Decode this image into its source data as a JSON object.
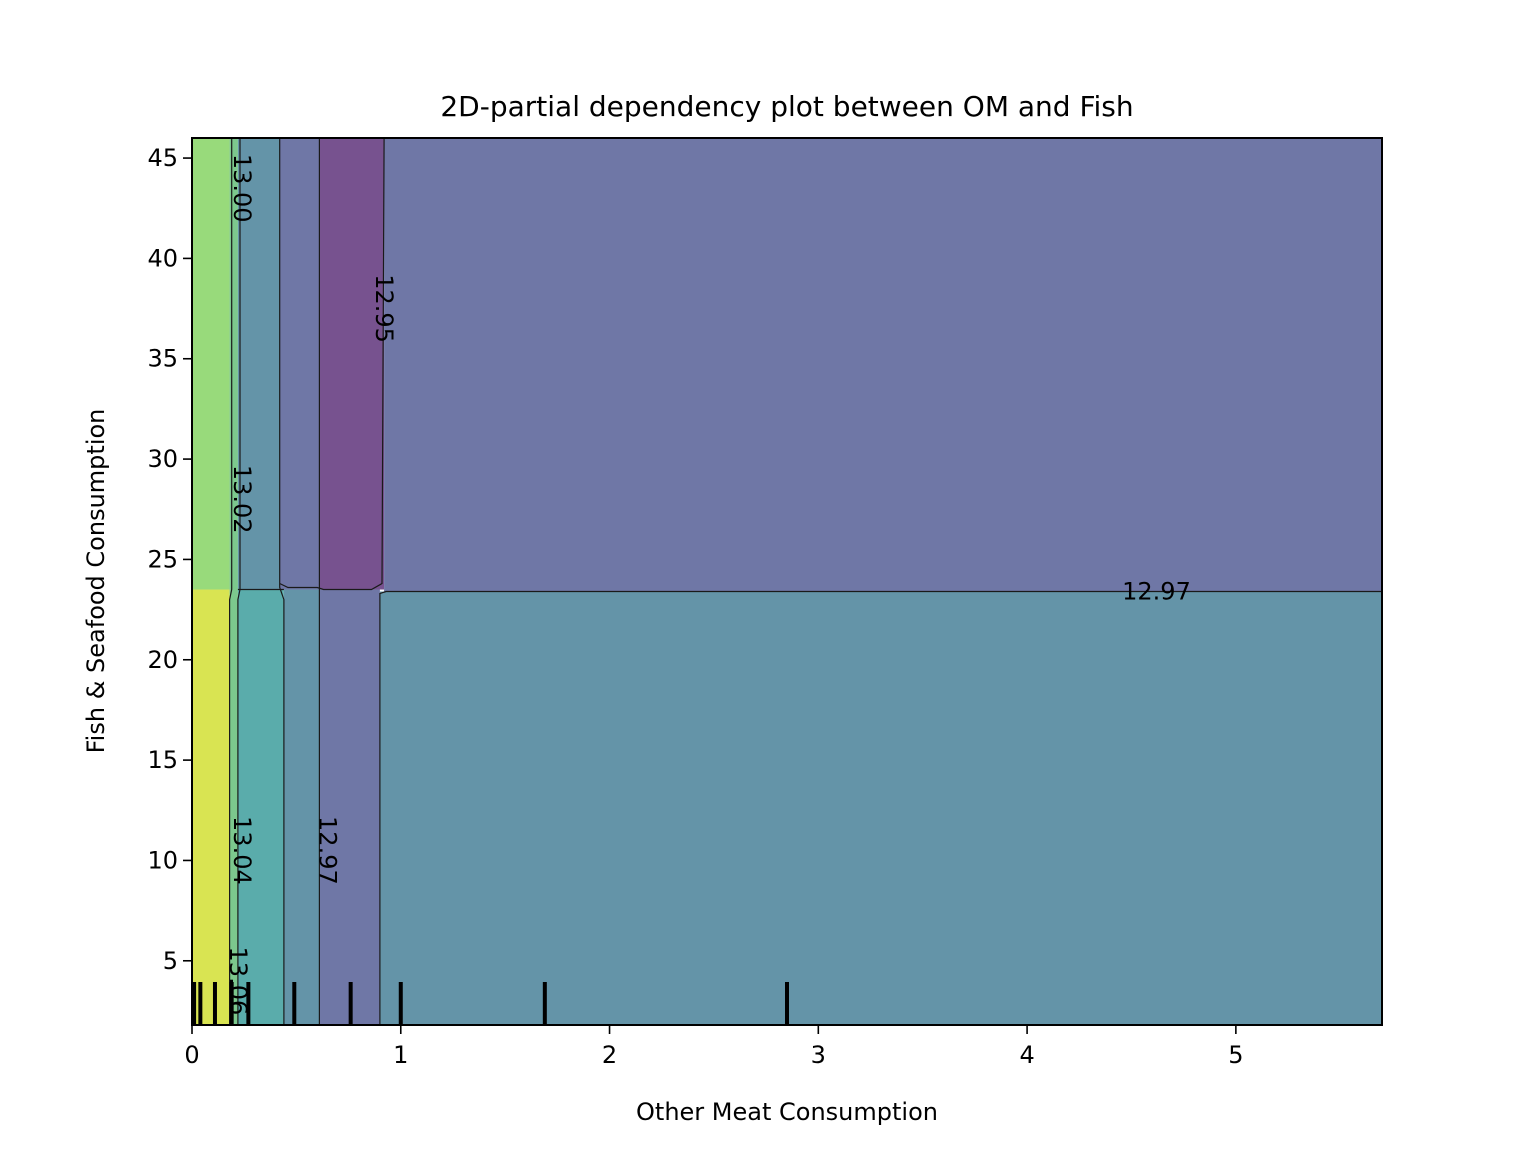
{
  "chart_data": {
    "type": "heatmap",
    "subtype": "filled-contour",
    "title": "2D-partial dependency plot between OM and Fish",
    "xlabel": "Other Meat Consumption",
    "ylabel": "Fish & Seafood Consumption",
    "xlim": [
      0,
      5.7
    ],
    "ylim": [
      1.8,
      46
    ],
    "xticks": [
      0,
      1,
      2,
      3,
      4,
      5
    ],
    "yticks": [
      5,
      10,
      15,
      20,
      25,
      30,
      35,
      40,
      45
    ],
    "grid": false,
    "legend": "none",
    "colormap": "viridis",
    "y_split": 23.5,
    "regions": [
      {
        "x": [
          0.0,
          0.18
        ],
        "y": [
          1.8,
          23.5
        ],
        "color": "#d9e452"
      },
      {
        "x": [
          0.0,
          0.18
        ],
        "y": [
          23.5,
          46.0
        ],
        "color": "#98da7b"
      },
      {
        "x": [
          0.18,
          0.22
        ],
        "y": [
          1.8,
          23.5
        ],
        "color": "#7cc88d"
      },
      {
        "x": [
          0.18,
          0.22
        ],
        "y": [
          23.5,
          46.0
        ],
        "color": "#7cc88d"
      },
      {
        "x": [
          0.22,
          0.44
        ],
        "y": [
          1.8,
          23.5
        ],
        "color": "#5aacab"
      },
      {
        "x": [
          0.22,
          0.42
        ],
        "y": [
          23.5,
          46.0
        ],
        "color": "#6494a8"
      },
      {
        "x": [
          0.44,
          0.61
        ],
        "y": [
          1.8,
          23.5
        ],
        "color": "#6494a8"
      },
      {
        "x": [
          0.42,
          0.61
        ],
        "y": [
          23.5,
          46.0
        ],
        "color": "#6f77a6"
      },
      {
        "x": [
          0.61,
          0.9
        ],
        "y": [
          1.8,
          23.5
        ],
        "color": "#6f77a6"
      },
      {
        "x": [
          0.61,
          0.92
        ],
        "y": [
          23.5,
          46.0
        ],
        "color": "#77528f"
      },
      {
        "x": [
          0.9,
          5.7
        ],
        "y": [
          1.8,
          23.4
        ],
        "color": "#6494a8"
      },
      {
        "x": [
          0.92,
          5.7
        ],
        "y": [
          23.4,
          46.0
        ],
        "color": "#6f77a6"
      }
    ],
    "contour_lines": [
      {
        "points": [
          [
            0.18,
            1.8
          ],
          [
            0.18,
            23.0
          ],
          [
            0.19,
            23.5
          ],
          [
            0.19,
            46.0
          ]
        ]
      },
      {
        "points": [
          [
            0.22,
            1.8
          ],
          [
            0.22,
            23.0
          ],
          [
            0.23,
            23.5
          ],
          [
            0.23,
            46.0
          ]
        ]
      },
      {
        "points": [
          [
            0.44,
            1.8
          ],
          [
            0.44,
            23.0
          ],
          [
            0.42,
            23.6
          ],
          [
            0.42,
            46.0
          ]
        ]
      },
      {
        "points": [
          [
            0.61,
            1.8
          ],
          [
            0.61,
            23.0
          ],
          [
            0.61,
            23.8
          ],
          [
            0.61,
            46.0
          ]
        ]
      },
      {
        "points": [
          [
            0.9,
            1.8
          ],
          [
            0.9,
            23.3
          ],
          [
            0.93,
            23.4
          ],
          [
            5.7,
            23.4
          ]
        ]
      },
      {
        "points": [
          [
            0.42,
            23.8
          ],
          [
            0.46,
            23.6
          ],
          [
            0.6,
            23.6
          ],
          [
            0.63,
            23.5
          ],
          [
            0.86,
            23.5
          ],
          [
            0.91,
            23.8
          ],
          [
            0.92,
            46.0
          ]
        ]
      },
      {
        "points": [
          [
            0.22,
            23.5
          ],
          [
            0.44,
            23.5
          ]
        ]
      }
    ],
    "contour_labels": [
      {
        "text": "13.00",
        "x": 0.24,
        "y": 43.5,
        "rotation": 90
      },
      {
        "text": "12.95",
        "x": 0.92,
        "y": 37.5,
        "rotation": 90
      },
      {
        "text": "13.02",
        "x": 0.24,
        "y": 28.0,
        "rotation": 90
      },
      {
        "text": "12.97",
        "x": 4.62,
        "y": 23.4,
        "rotation": 0
      },
      {
        "text": "13.04",
        "x": 0.24,
        "y": 10.5,
        "rotation": 90
      },
      {
        "text": "12.97",
        "x": 0.65,
        "y": 10.5,
        "rotation": 90
      },
      {
        "text": "13.06",
        "x": 0.22,
        "y": 4.0,
        "rotation": 90
      }
    ],
    "rug_x": [
      0.01,
      0.04,
      0.11,
      0.19,
      0.27,
      0.49,
      0.76,
      1.0,
      1.69,
      2.85
    ]
  }
}
